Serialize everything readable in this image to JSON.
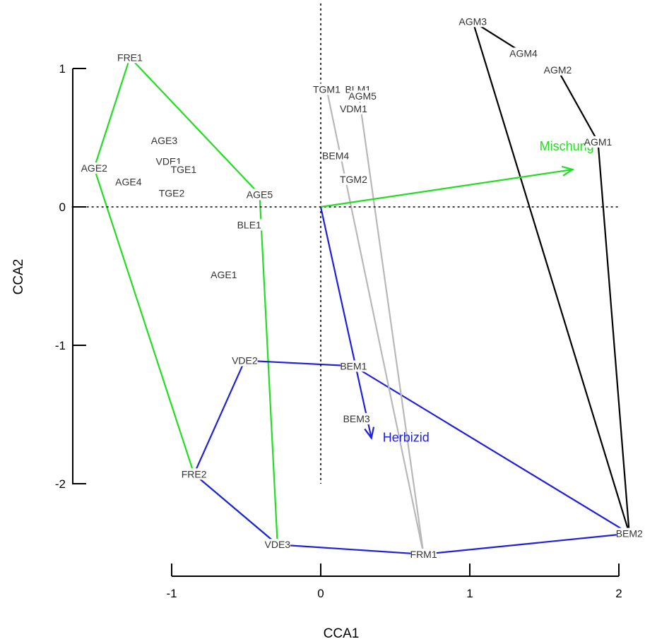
{
  "chart_data": {
    "type": "scatter",
    "xlabel": "CCA1",
    "ylabel": "CCA2",
    "xlim": [
      -1.0,
      2.0
    ],
    "ylim": [
      -2.0,
      1.0
    ],
    "xticks": [
      {
        "value": -1,
        "label": "-1"
      },
      {
        "value": 0,
        "label": "0"
      },
      {
        "value": 1,
        "label": "1"
      },
      {
        "value": 2,
        "label": "2"
      }
    ],
    "yticks": [
      {
        "value": -2,
        "label": "-2"
      },
      {
        "value": -1,
        "label": "-1"
      },
      {
        "value": 0,
        "label": "0"
      },
      {
        "value": 1,
        "label": "1"
      }
    ],
    "reference_lines": {
      "x": 0,
      "y": 0,
      "style": "dotted"
    },
    "sites": [
      {
        "label": "FRE1",
        "x": -1.28,
        "y": 1.08
      },
      {
        "label": "AGE2",
        "x": -1.52,
        "y": 0.28
      },
      {
        "label": "AGE3",
        "x": -1.05,
        "y": 0.48
      },
      {
        "label": "VDE1",
        "x": -1.02,
        "y": 0.33
      },
      {
        "label": "TGE1",
        "x": -0.92,
        "y": 0.27
      },
      {
        "label": "AGE4",
        "x": -1.29,
        "y": 0.18
      },
      {
        "label": "TGE2",
        "x": -1.0,
        "y": 0.1
      },
      {
        "label": "AGE5",
        "x": -0.41,
        "y": 0.09
      },
      {
        "label": "BLE1",
        "x": -0.48,
        "y": -0.13
      },
      {
        "label": "AGE1",
        "x": -0.65,
        "y": -0.49
      },
      {
        "label": "VDE2",
        "x": -0.51,
        "y": -1.11
      },
      {
        "label": "FRE2",
        "x": -0.85,
        "y": -1.93
      },
      {
        "label": "VDE3",
        "x": -0.29,
        "y": -2.44
      },
      {
        "label": "TGM1",
        "x": 0.04,
        "y": 0.85
      },
      {
        "label": "BLM1",
        "x": 0.25,
        "y": 0.85
      },
      {
        "label": "AGM5",
        "x": 0.28,
        "y": 0.8
      },
      {
        "label": "VDM1",
        "x": 0.22,
        "y": 0.71
      },
      {
        "label": "BEM4",
        "x": 0.1,
        "y": 0.37
      },
      {
        "label": "TGM2",
        "x": 0.22,
        "y": 0.2
      },
      {
        "label": "BEM1",
        "x": 0.22,
        "y": -1.15
      },
      {
        "label": "BEM3",
        "x": 0.24,
        "y": -1.53
      },
      {
        "label": "FRM1",
        "x": 0.69,
        "y": -2.51
      },
      {
        "label": "BEM2",
        "x": 2.07,
        "y": -2.36
      },
      {
        "label": "AGM3",
        "x": 1.02,
        "y": 1.34
      },
      {
        "label": "AGM4",
        "x": 1.36,
        "y": 1.11
      },
      {
        "label": "AGM2",
        "x": 1.59,
        "y": 0.99
      },
      {
        "label": "AGM1",
        "x": 1.86,
        "y": 0.47
      }
    ],
    "hulls": [
      {
        "color": "#22dd22",
        "points": [
          [
            -1.28,
            1.08
          ],
          [
            -0.41,
            0.09
          ],
          [
            -0.29,
            -2.44
          ],
          [
            -0.85,
            -1.93
          ],
          [
            -1.52,
            0.28
          ]
        ],
        "closed": true
      },
      {
        "color": "#1f1fdd",
        "points": [
          [
            -0.51,
            -1.11
          ],
          [
            0.22,
            -1.15
          ],
          [
            2.07,
            -2.36
          ],
          [
            0.69,
            -2.51
          ],
          [
            -0.29,
            -2.44
          ],
          [
            -0.85,
            -1.93
          ]
        ],
        "closed": true
      },
      {
        "color": "#b8b8b8",
        "points": [
          [
            0.04,
            0.85
          ],
          [
            0.69,
            -2.51
          ],
          [
            0.25,
            0.85
          ]
        ],
        "closed": false
      },
      {
        "color": "#000000",
        "points": [
          [
            1.59,
            0.99
          ],
          [
            1.86,
            0.47
          ],
          [
            2.07,
            -2.36
          ],
          [
            1.02,
            1.34
          ],
          [
            1.36,
            1.11
          ]
        ],
        "closed": false
      }
    ],
    "arrows": [
      {
        "label": "Mischung",
        "color": "#22dd22",
        "x": 1.69,
        "y": 0.27
      },
      {
        "label": "Herbizid",
        "color": "#1f1fdd",
        "x": 0.34,
        "y": -1.67
      }
    ]
  }
}
